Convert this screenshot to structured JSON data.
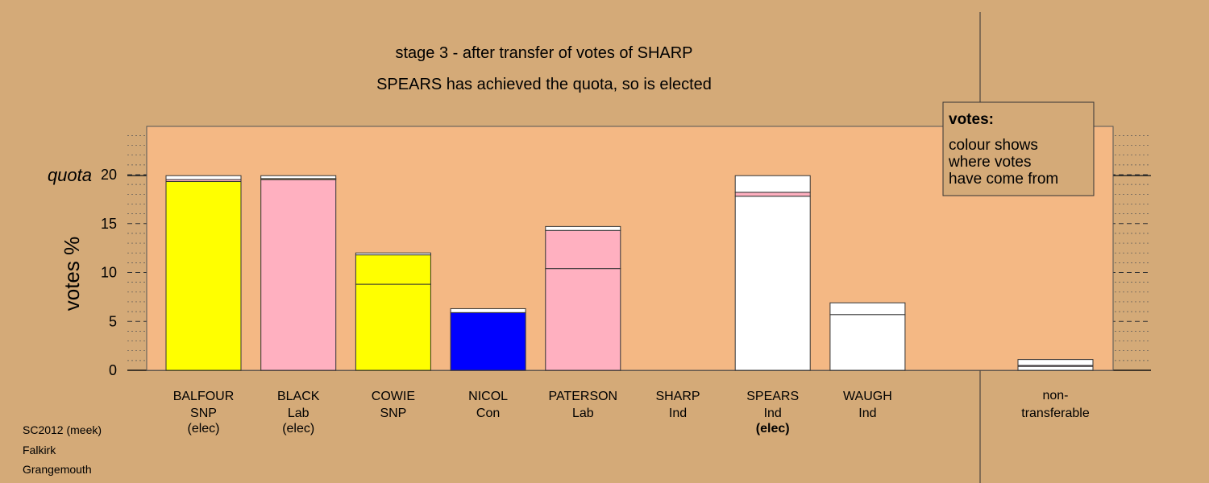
{
  "chart_data": {
    "type": "bar",
    "title": "stage 3 - after transfer of votes of SHARP",
    "subtitle": "SPEARS has achieved the quota, so is elected",
    "ylabel": "votes %",
    "ylim": [
      0,
      20
    ],
    "yticks": [
      0,
      5,
      10,
      15,
      20
    ],
    "quota": 19.9,
    "quota_label": "quota",
    "legend": {
      "title": "votes:",
      "lines": [
        "colour shows",
        "where votes",
        "have come from"
      ]
    },
    "colors": {
      "SNP": "#ffff00",
      "Lab": "#ffb0c0",
      "Con": "#0000ff",
      "Ind": "#ffffff"
    },
    "candidates": [
      {
        "name": "BALFOUR",
        "party": "SNP",
        "status": "(elec)",
        "segments": [
          {
            "party": "SNP",
            "value": 19.3
          },
          {
            "party": "Lab",
            "value": 0.2
          },
          {
            "party": "Ind",
            "value": 0.4
          }
        ]
      },
      {
        "name": "BLACK",
        "party": "Lab",
        "status": "(elec)",
        "segments": [
          {
            "party": "Lab",
            "value": 19.5
          },
          {
            "party": "SNP",
            "value": 0.1
          },
          {
            "party": "Ind",
            "value": 0.3
          }
        ]
      },
      {
        "name": "COWIE",
        "party": "SNP",
        "status": "",
        "segments": [
          {
            "party": "SNP",
            "value": 8.8
          },
          {
            "party": "SNP",
            "value": 3.0
          },
          {
            "party": "Ind",
            "value": 0.2
          }
        ]
      },
      {
        "name": "NICOL",
        "party": "Con",
        "status": "",
        "segments": [
          {
            "party": "Con",
            "value": 5.9
          },
          {
            "party": "Ind",
            "value": 0.4
          }
        ]
      },
      {
        "name": "PATERSON",
        "party": "Lab",
        "status": "",
        "segments": [
          {
            "party": "Lab",
            "value": 10.4
          },
          {
            "party": "Lab",
            "value": 3.9
          },
          {
            "party": "Ind",
            "value": 0.4
          }
        ]
      },
      {
        "name": "SHARP",
        "party": "Ind",
        "status": "",
        "segments": []
      },
      {
        "name": "SPEARS",
        "party": "Ind",
        "status": "(elec)",
        "segments": [
          {
            "party": "Ind",
            "value": 17.8
          },
          {
            "party": "Lab",
            "value": 0.4
          },
          {
            "party": "Ind",
            "value": 1.7
          }
        ]
      },
      {
        "name": "WAUGH",
        "party": "Ind",
        "status": "",
        "segments": [
          {
            "party": "Ind",
            "value": 5.7
          },
          {
            "party": "Ind",
            "value": 1.2
          }
        ]
      }
    ],
    "non_transferable": {
      "label_lines": [
        "non-",
        "transferable"
      ],
      "segments": [
        {
          "party": "Ind",
          "value": 0.4
        },
        {
          "party": "Lab",
          "value": 0.1
        },
        {
          "party": "Ind",
          "value": 0.6
        }
      ]
    }
  },
  "corner": {
    "lines": [
      "SC2012 (meek)",
      "Falkirk",
      "Grangemouth"
    ]
  }
}
